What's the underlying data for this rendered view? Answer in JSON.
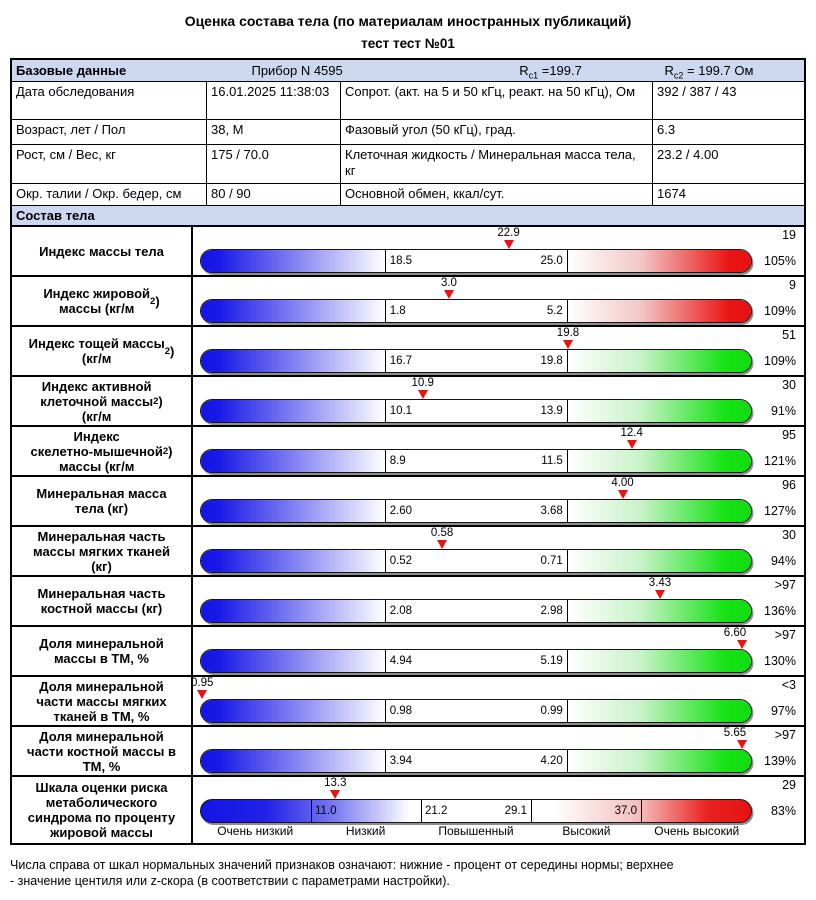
{
  "title": "Оценка состава тела (по материалам иностранных публикаций)",
  "subtitle": "тест тест №01",
  "info": {
    "header": {
      "label": "Базовые данные",
      "device": "Прибор N 4595",
      "rc1": {
        "prefix": "R",
        "sub": "c1",
        "rest": " =199.7"
      },
      "rc2": {
        "prefix": "R",
        "sub": "c2",
        "rest": " = 199.7 Ом"
      }
    },
    "rows": [
      {
        "param": "Дата обследования",
        "value": "16.01.2025 11:38:03",
        "param2": "Сопрот. (акт. на 5 и 50 кГц, реакт. на 50 кГц), Ом",
        "value2": "392 / 387 / 43"
      },
      {
        "param": "Возраст, лет / Пол",
        "value": "38, М",
        "param2": "Фазовый угол (50 кГц), град.",
        "value2": "6.3"
      },
      {
        "param": "Рост, см / Вес, кг",
        "value": "175 / 70.0",
        "param2": "Клеточная жидкость / Минеральная масса тела, кг",
        "value2": "23.2 / 4.00"
      },
      {
        "param": "Окр. талии / Окр. бедер, см",
        "value": "80 / 90",
        "param2": "Основной обмен, ккал/сут.",
        "value2": "1674"
      }
    ]
  },
  "section_title": "Состав тела",
  "chart_data": {
    "type": "bar",
    "title": "Состав тела",
    "scales": [
      {
        "label": "Индекс массы тела",
        "value": 22.9,
        "value_label": "22.9",
        "norm_low": 18.5,
        "norm_high": 25.0,
        "norm_low_label": "18.5",
        "norm_high_label": "25.0",
        "bar_type": "red",
        "centile": "19",
        "percent": "105%"
      },
      {
        "label": "Индекс жировой\nмассы (кг/м²)",
        "value": 3.0,
        "value_label": "3.0",
        "norm_low": 1.8,
        "norm_high": 5.2,
        "norm_low_label": "1.8",
        "norm_high_label": "5.2",
        "bar_type": "red",
        "centile": "9",
        "percent": "109%"
      },
      {
        "label": "Индекс тощей массы\n(кг/м²)",
        "value": 19.8,
        "value_label": "19.8",
        "norm_low": 16.7,
        "norm_high": 19.8,
        "norm_low_label": "16.7",
        "norm_high_label": "19.8",
        "bar_type": "green",
        "centile": "51",
        "percent": "109%"
      },
      {
        "label": "Индекс активной\nклеточной массы\n(кг/м²)",
        "value": 10.9,
        "value_label": "10.9",
        "norm_low": 10.1,
        "norm_high": 13.9,
        "norm_low_label": "10.1",
        "norm_high_label": "13.9",
        "bar_type": "green",
        "centile": "30",
        "percent": "91%"
      },
      {
        "label": "Индекс\nскелетно-мышечной\nмассы (кг/м²)",
        "value": 12.4,
        "value_label": "12.4",
        "norm_low": 8.9,
        "norm_high": 11.5,
        "norm_low_label": "8.9",
        "norm_high_label": "11.5",
        "bar_type": "green",
        "centile": "95",
        "percent": "121%"
      },
      {
        "label": "Минеральная масса\nтела (кг)",
        "value": 4.0,
        "value_label": "4.00",
        "norm_low": 2.6,
        "norm_high": 3.68,
        "norm_low_label": "2.60",
        "norm_high_label": "3.68",
        "bar_type": "green",
        "centile": "96",
        "percent": "127%"
      },
      {
        "label": "Минеральная часть\nмассы мягких тканей\n(кг)",
        "value": 0.58,
        "value_label": "0.58",
        "norm_low": 0.52,
        "norm_high": 0.71,
        "norm_low_label": "0.52",
        "norm_high_label": "0.71",
        "bar_type": "green",
        "centile": "30",
        "percent": "94%"
      },
      {
        "label": "Минеральная часть\nкостной массы (кг)",
        "value": 3.43,
        "value_label": "3.43",
        "norm_low": 2.08,
        "norm_high": 2.98,
        "norm_low_label": "2.08",
        "norm_high_label": "2.98",
        "bar_type": "green",
        "centile": ">97",
        "percent": "136%"
      },
      {
        "label": "Доля минеральной\nмассы в ТМ, %",
        "value": 6.6,
        "value_label": "6.60",
        "norm_low": 4.94,
        "norm_high": 5.19,
        "norm_low_label": "4.94",
        "norm_high_label": "5.19",
        "bar_type": "green",
        "centile": ">97",
        "percent": "130%"
      },
      {
        "label": "Доля минеральной\nчасти массы мягких\nтканей в ТМ, %",
        "value": 0.95,
        "value_label": "0.95",
        "norm_low": 0.98,
        "norm_high": 0.99,
        "norm_low_label": "0.98",
        "norm_high_label": "0.99",
        "bar_type": "green",
        "centile": "<3",
        "percent": "97%"
      },
      {
        "label": "Доля минеральной\nчасти костной массы в\nТМ, %",
        "value": 5.65,
        "value_label": "5.65",
        "norm_low": 3.94,
        "norm_high": 4.2,
        "norm_low_label": "3.94",
        "norm_high_label": "4.20",
        "bar_type": "green",
        "centile": ">97",
        "percent": "139%"
      },
      {
        "label": "Шкала оценки риска\nметаболического\nсиндрома по проценту\nжировой массы",
        "value": 13.3,
        "value_label": "13.3",
        "bar_type": "risk",
        "thresholds": [
          11.0,
          21.2,
          29.1,
          37.0
        ],
        "threshold_labels": [
          "11.0",
          "21.2",
          "29.1",
          "37.0"
        ],
        "zone_labels": [
          "Очень низкий",
          "Низкий",
          "Повышенный",
          "Высокий",
          "Очень высокий"
        ],
        "centile": "29",
        "percent": "83%"
      }
    ]
  },
  "colors": {
    "header_band": "#ccd8ef",
    "bar_blue": "#1414e6",
    "bar_red": "#e81212",
    "bar_green": "#12df12",
    "marker_red": "#e81414"
  },
  "footnote": {
    "line1": "Числа справа от шкал нормальных значений признаков означают: нижние - процент от середины нормы; верхнее",
    "line2": "- значение центиля или z-скора (в соответствии с параметрами настройки)."
  }
}
